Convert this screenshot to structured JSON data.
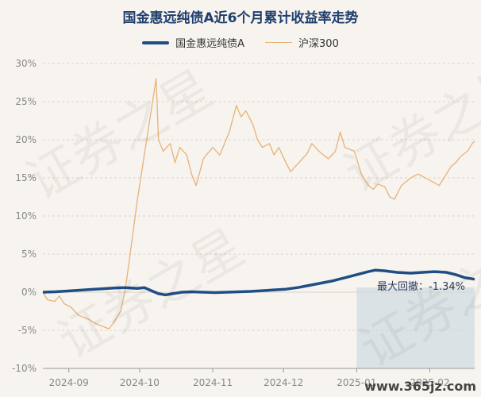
{
  "title": "国金惠远纯债A近6个月累计收益率走势",
  "legend": [
    "国金惠远纯债A",
    "沪深300"
  ],
  "annotation": "最大回撤：-1.34%",
  "watermark": "证券之星",
  "site_watermark": "www.365jz.com",
  "colors": {
    "fund": "#1f4e85",
    "index": "#e8b27a",
    "drawdown": "#c5d3df"
  },
  "chart_data": {
    "type": "line",
    "title": "国金惠远纯债A近6个月累计收益率走势",
    "ylim": [
      -10,
      30
    ],
    "yticks": [
      "30%",
      "25%",
      "20%",
      "15%",
      "10%",
      "5%",
      "0%",
      "-5%",
      "-10%"
    ],
    "xticks": [
      {
        "label": "2024-09",
        "date": "2024-09-01"
      },
      {
        "label": "2024-10",
        "date": "2024-10-01"
      },
      {
        "label": "2024-11",
        "date": "2024-11-01"
      },
      {
        "label": "2024-12",
        "date": "2024-12-01"
      },
      {
        "label": "2025-01",
        "date": "2025-01-01"
      },
      {
        "label": "2025-02",
        "date": "2025-02-01"
      }
    ],
    "xrange": [
      "2024-08-21",
      "2025-02-20"
    ],
    "drawdown_range": [
      "2025-01-01",
      "2025-02-20"
    ],
    "series": [
      {
        "name": "国金惠远纯债A",
        "points": [
          [
            "2024-08-21",
            0.0
          ],
          [
            "2024-08-26",
            0.05
          ],
          [
            "2024-08-31",
            0.15
          ],
          [
            "2024-09-05",
            0.25
          ],
          [
            "2024-09-10",
            0.35
          ],
          [
            "2024-09-15",
            0.45
          ],
          [
            "2024-09-20",
            0.55
          ],
          [
            "2024-09-25",
            0.6
          ],
          [
            "2024-09-30",
            0.5
          ],
          [
            "2024-10-03",
            0.6
          ],
          [
            "2024-10-06",
            0.2
          ],
          [
            "2024-10-09",
            -0.2
          ],
          [
            "2024-10-12",
            -0.35
          ],
          [
            "2024-10-15",
            -0.2
          ],
          [
            "2024-10-19",
            0.0
          ],
          [
            "2024-10-23",
            0.05
          ],
          [
            "2024-10-28",
            0.0
          ],
          [
            "2024-11-02",
            -0.05
          ],
          [
            "2024-11-07",
            0.0
          ],
          [
            "2024-11-12",
            0.05
          ],
          [
            "2024-11-17",
            0.1
          ],
          [
            "2024-11-22",
            0.2
          ],
          [
            "2024-11-27",
            0.3
          ],
          [
            "2024-12-02",
            0.4
          ],
          [
            "2024-12-07",
            0.6
          ],
          [
            "2024-12-12",
            0.9
          ],
          [
            "2024-12-17",
            1.2
          ],
          [
            "2024-12-22",
            1.5
          ],
          [
            "2024-12-27",
            1.9
          ],
          [
            "2025-01-01",
            2.3
          ],
          [
            "2025-01-06",
            2.7
          ],
          [
            "2025-01-09",
            2.9
          ],
          [
            "2025-01-13",
            2.8
          ],
          [
            "2025-01-18",
            2.6
          ],
          [
            "2025-01-24",
            2.5
          ],
          [
            "2025-01-29",
            2.6
          ],
          [
            "2025-02-03",
            2.7
          ],
          [
            "2025-02-08",
            2.6
          ],
          [
            "2025-02-12",
            2.3
          ],
          [
            "2025-02-16",
            1.9
          ],
          [
            "2025-02-20",
            1.7
          ]
        ]
      },
      {
        "name": "沪深300",
        "points": [
          [
            "2024-08-21",
            0.0
          ],
          [
            "2024-08-23",
            -1.0
          ],
          [
            "2024-08-26",
            -1.2
          ],
          [
            "2024-08-28",
            -0.5
          ],
          [
            "2024-08-30",
            -1.5
          ],
          [
            "2024-09-02",
            -2.0
          ],
          [
            "2024-09-05",
            -3.0
          ],
          [
            "2024-09-09",
            -3.5
          ],
          [
            "2024-09-13",
            -4.2
          ],
          [
            "2024-09-18",
            -4.8
          ],
          [
            "2024-09-20",
            -4.0
          ],
          [
            "2024-09-23",
            -2.5
          ],
          [
            "2024-09-25",
            0.5
          ],
          [
            "2024-09-27",
            5.0
          ],
          [
            "2024-09-30",
            12.0
          ],
          [
            "2024-10-08",
            28.0
          ],
          [
            "2024-10-09",
            20.0
          ],
          [
            "2024-10-11",
            18.5
          ],
          [
            "2024-10-14",
            19.5
          ],
          [
            "2024-10-16",
            17.0
          ],
          [
            "2024-10-18",
            19.0
          ],
          [
            "2024-10-21",
            18.0
          ],
          [
            "2024-10-23",
            15.5
          ],
          [
            "2024-10-25",
            14.0
          ],
          [
            "2024-10-28",
            17.5
          ],
          [
            "2024-11-01",
            19.0
          ],
          [
            "2024-11-04",
            18.0
          ],
          [
            "2024-11-06",
            19.5
          ],
          [
            "2024-11-08",
            21.0
          ],
          [
            "2024-11-11",
            24.5
          ],
          [
            "2024-11-13",
            23.0
          ],
          [
            "2024-11-15",
            23.8
          ],
          [
            "2024-11-18",
            22.0
          ],
          [
            "2024-11-20",
            20.0
          ],
          [
            "2024-11-22",
            19.0
          ],
          [
            "2024-11-25",
            19.5
          ],
          [
            "2024-11-27",
            18.0
          ],
          [
            "2024-11-29",
            19.0
          ],
          [
            "2024-12-02",
            17.0
          ],
          [
            "2024-12-04",
            15.8
          ],
          [
            "2024-12-06",
            16.5
          ],
          [
            "2024-12-09",
            17.5
          ],
          [
            "2024-12-11",
            18.2
          ],
          [
            "2024-12-13",
            19.5
          ],
          [
            "2024-12-16",
            18.5
          ],
          [
            "2024-12-18",
            18.0
          ],
          [
            "2024-12-20",
            17.5
          ],
          [
            "2024-12-23",
            18.5
          ],
          [
            "2024-12-25",
            21.0
          ],
          [
            "2024-12-27",
            19.0
          ],
          [
            "2024-12-31",
            18.5
          ],
          [
            "2025-01-03",
            15.5
          ],
          [
            "2025-01-06",
            14.0
          ],
          [
            "2025-01-08",
            13.5
          ],
          [
            "2025-01-10",
            14.2
          ],
          [
            "2025-01-13",
            13.8
          ],
          [
            "2025-01-15",
            12.5
          ],
          [
            "2025-01-17",
            12.2
          ],
          [
            "2025-01-20",
            14.0
          ],
          [
            "2025-01-22",
            14.5
          ],
          [
            "2025-01-24",
            15.0
          ],
          [
            "2025-01-27",
            15.5
          ],
          [
            "2025-02-05",
            14.0
          ],
          [
            "2025-02-07",
            15.0
          ],
          [
            "2025-02-10",
            16.5
          ],
          [
            "2025-02-12",
            17.0
          ],
          [
            "2025-02-14",
            17.8
          ],
          [
            "2025-02-17",
            18.5
          ],
          [
            "2025-02-19",
            19.5
          ],
          [
            "2025-02-20",
            19.8
          ]
        ]
      }
    ]
  }
}
